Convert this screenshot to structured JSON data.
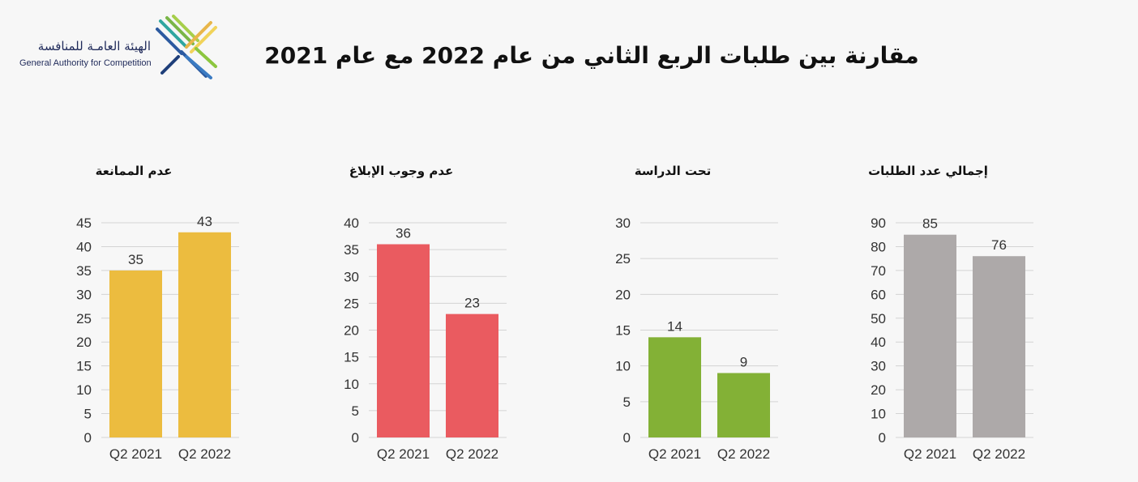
{
  "header": {
    "logo_ar": "الهيئة العامـة للمنافسة",
    "logo_en": "General Authority for Competition",
    "title": "مقارنة بين طلبات الربع الثاني من عام 2022 مع عام 2021"
  },
  "chart_data": [
    {
      "type": "bar",
      "title": "عدم الممانعة",
      "categories": [
        "Q2 2021",
        "Q2 2022"
      ],
      "values": [
        35,
        43
      ],
      "ylim": [
        0,
        45
      ],
      "yticks": [
        0,
        5,
        10,
        15,
        20,
        25,
        30,
        35,
        40,
        45
      ],
      "color": "#ecbc3f",
      "grid": true
    },
    {
      "type": "bar",
      "title": "عدم وجوب الإبلاغ",
      "categories": [
        "Q2 2021",
        "Q2 2022"
      ],
      "values": [
        36,
        23
      ],
      "ylim": [
        0,
        40
      ],
      "yticks": [
        0,
        5,
        10,
        15,
        20,
        25,
        30,
        35,
        40
      ],
      "color": "#ea5b60",
      "grid": true
    },
    {
      "type": "bar",
      "title": "تحت الدراسة",
      "categories": [
        "Q2 2021",
        "Q2 2022"
      ],
      "values": [
        14,
        9
      ],
      "ylim": [
        0,
        30
      ],
      "yticks": [
        0,
        5,
        10,
        15,
        20,
        25,
        30
      ],
      "color": "#83b136",
      "grid": true
    },
    {
      "type": "bar",
      "title": "إجمالي عدد الطلبات",
      "categories": [
        "Q2 2021",
        "Q2 2022"
      ],
      "values": [
        85,
        76
      ],
      "ylim": [
        0,
        90
      ],
      "yticks": [
        0,
        10,
        20,
        30,
        40,
        50,
        60,
        70,
        80,
        90
      ],
      "color": "#ada9a9",
      "grid": true
    }
  ]
}
